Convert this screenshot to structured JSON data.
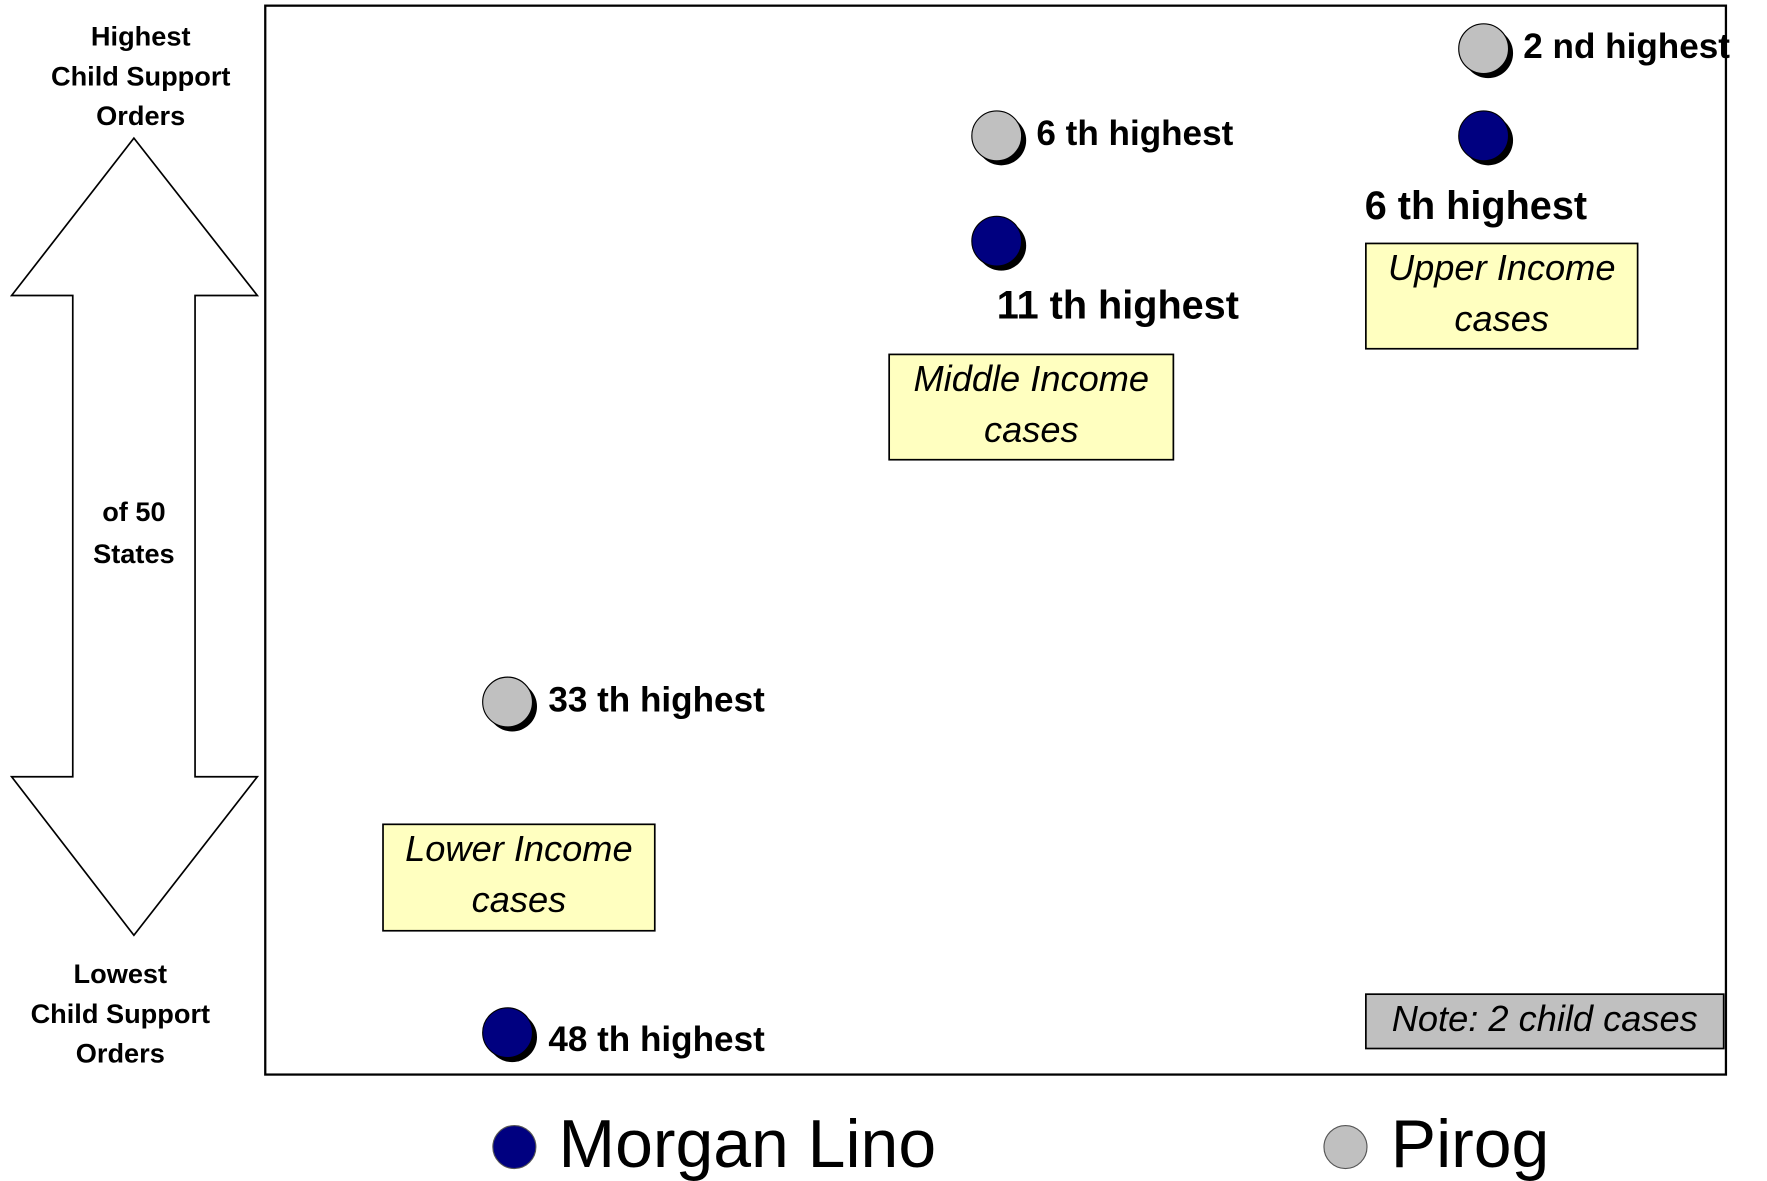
{
  "axis": {
    "top": [
      "Highest",
      "Child Support",
      "Orders"
    ],
    "middle": [
      "of 50",
      "States"
    ],
    "bottom": [
      "Lowest",
      "Child Support",
      "Orders"
    ]
  },
  "points": [
    {
      "series": 1,
      "label": "33 th highest"
    },
    {
      "series": 0,
      "label": "48 th highest"
    },
    {
      "series": 1,
      "label": "6 th highest"
    },
    {
      "series": 0,
      "label": "11 th highest"
    },
    {
      "series": 1,
      "label": "2 nd highest"
    },
    {
      "series": 0,
      "label": "6 th highest"
    }
  ],
  "groups": [
    {
      "lines": [
        "Lower Income",
        "cases"
      ]
    },
    {
      "lines": [
        "Middle Income",
        "cases"
      ]
    },
    {
      "lines": [
        "Upper Income",
        "cases"
      ]
    }
  ],
  "note": "Note: 2 child cases",
  "legend": [
    {
      "name": "Morgan Lino",
      "color": "#000080"
    },
    {
      "name": "Pirog",
      "color": "#c0c0c0"
    }
  ]
}
